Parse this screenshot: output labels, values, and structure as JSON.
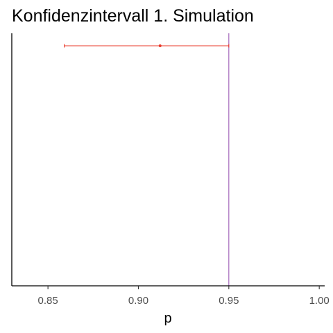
{
  "chart_data": {
    "type": "scatter",
    "title": "Konfidenzintervall 1. Simulation",
    "xlabel": "p",
    "ylabel": "",
    "xlim": [
      0.83,
      1.003
    ],
    "xticks": [
      0.85,
      0.9,
      0.95,
      1.0
    ],
    "xtick_labels": [
      "0.85",
      "0.90",
      "0.95",
      "1.00"
    ],
    "grid": false,
    "series": [
      {
        "estimate": 0.912,
        "ci_lower": 0.859,
        "ci_upper": 0.95,
        "color": "#e8392a"
      }
    ],
    "reference_line": {
      "x": 0.95,
      "color": "#9b59b6"
    }
  }
}
